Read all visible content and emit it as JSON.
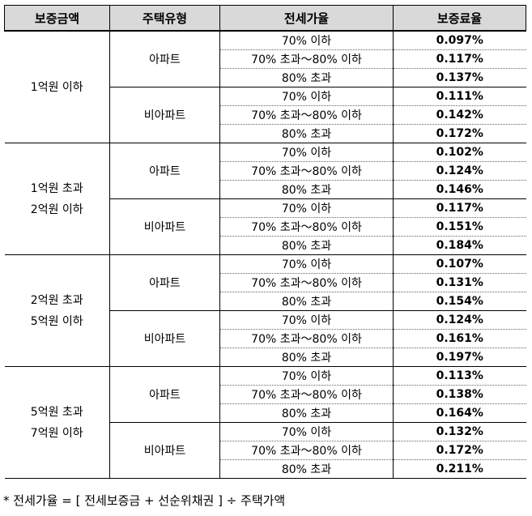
{
  "headers": {
    "amount": "보증금액",
    "type": "주택유형",
    "ratio": "전세가율",
    "rate": "보증료율"
  },
  "groups": [
    {
      "amount_lines": [
        "1억원 이하"
      ],
      "types": [
        {
          "name": "아파트",
          "rows": [
            {
              "ratio": "70% 이하",
              "rate": "0.097%"
            },
            {
              "ratio": "70% 초과～80% 이하",
              "rate": "0.117%"
            },
            {
              "ratio": "80% 초과",
              "rate": "0.137%"
            }
          ]
        },
        {
          "name": "비아파트",
          "rows": [
            {
              "ratio": "70% 이하",
              "rate": "0.111%"
            },
            {
              "ratio": "70% 초과～80% 이하",
              "rate": "0.142%"
            },
            {
              "ratio": "80% 초과",
              "rate": "0.172%"
            }
          ]
        }
      ]
    },
    {
      "amount_lines": [
        "1억원 초과",
        "2억원 이하"
      ],
      "types": [
        {
          "name": "아파트",
          "rows": [
            {
              "ratio": "70% 이하",
              "rate": "0.102%"
            },
            {
              "ratio": "70% 초과～80% 이하",
              "rate": "0.124%"
            },
            {
              "ratio": "80% 초과",
              "rate": "0.146%"
            }
          ]
        },
        {
          "name": "비아파트",
          "rows": [
            {
              "ratio": "70% 이하",
              "rate": "0.117%"
            },
            {
              "ratio": "70% 초과～80% 이하",
              "rate": "0.151%"
            },
            {
              "ratio": "80% 초과",
              "rate": "0.184%"
            }
          ]
        }
      ]
    },
    {
      "amount_lines": [
        "2억원 초과",
        "5억원 이하"
      ],
      "types": [
        {
          "name": "아파트",
          "rows": [
            {
              "ratio": "70% 이하",
              "rate": "0.107%"
            },
            {
              "ratio": "70% 초과～80% 이하",
              "rate": "0.131%"
            },
            {
              "ratio": "80% 초과",
              "rate": "0.154%"
            }
          ]
        },
        {
          "name": "비아파트",
          "rows": [
            {
              "ratio": "70% 이하",
              "rate": "0.124%"
            },
            {
              "ratio": "70% 초과～80% 이하",
              "rate": "0.161%"
            },
            {
              "ratio": "80% 초과",
              "rate": "0.197%"
            }
          ]
        }
      ]
    },
    {
      "amount_lines": [
        "5억원 초과",
        "7억원 이하"
      ],
      "types": [
        {
          "name": "아파트",
          "rows": [
            {
              "ratio": "70% 이하",
              "rate": "0.113%"
            },
            {
              "ratio": "70% 초과～80% 이하",
              "rate": "0.138%"
            },
            {
              "ratio": "80% 초과",
              "rate": "0.164%"
            }
          ]
        },
        {
          "name": "비아파트",
          "rows": [
            {
              "ratio": "70% 이하",
              "rate": "0.132%"
            },
            {
              "ratio": "70% 초과～80% 이하",
              "rate": "0.172%"
            },
            {
              "ratio": "80% 초과",
              "rate": "0.211%"
            }
          ]
        }
      ]
    }
  ],
  "footnote": "*  전세가율  =  [  전세보증금  +  선순위채권  ]   ÷  주택가액"
}
